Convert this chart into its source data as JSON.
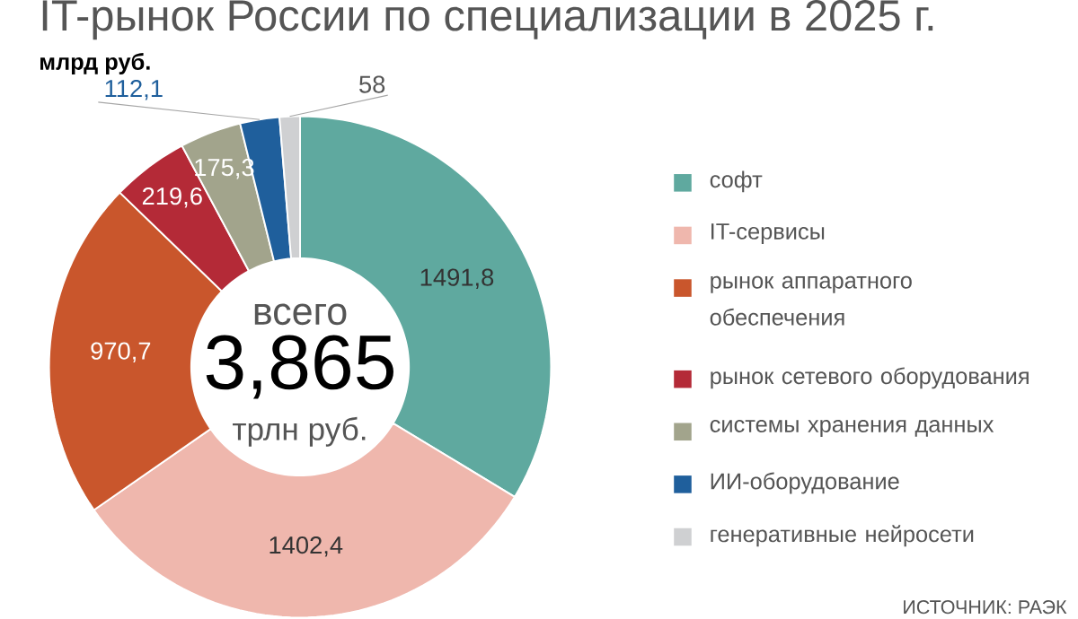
{
  "chart_data": {
    "type": "donut",
    "title": "IT-рынок России по специализации в 2025 г.",
    "subtitle": "млрд руб.",
    "categories": [
      "софт",
      "IT-сервисы",
      "рынок аппаратного обеспечения",
      "рынок сетевого оборудования",
      "системы хранения данных",
      "ИИ-оборудование",
      "генеративные нейросети"
    ],
    "values": [
      1491.8,
      1402.4,
      970.7,
      219.6,
      175.3,
      112.1,
      58
    ],
    "value_labels": [
      "1491,8",
      "1402,4",
      "970,7",
      "219,6",
      "175,3",
      "112,1",
      "58"
    ],
    "colors": [
      "#5fa99f",
      "#efb7ad",
      "#c9562c",
      "#b42a37",
      "#a2a48c",
      "#1f5f9c",
      "#cfd0d2"
    ],
    "legend": "right",
    "annotations": [
      "всего",
      "3,865",
      "трлн руб.",
      "ИСТОЧНИК: РАЭК"
    ]
  }
}
